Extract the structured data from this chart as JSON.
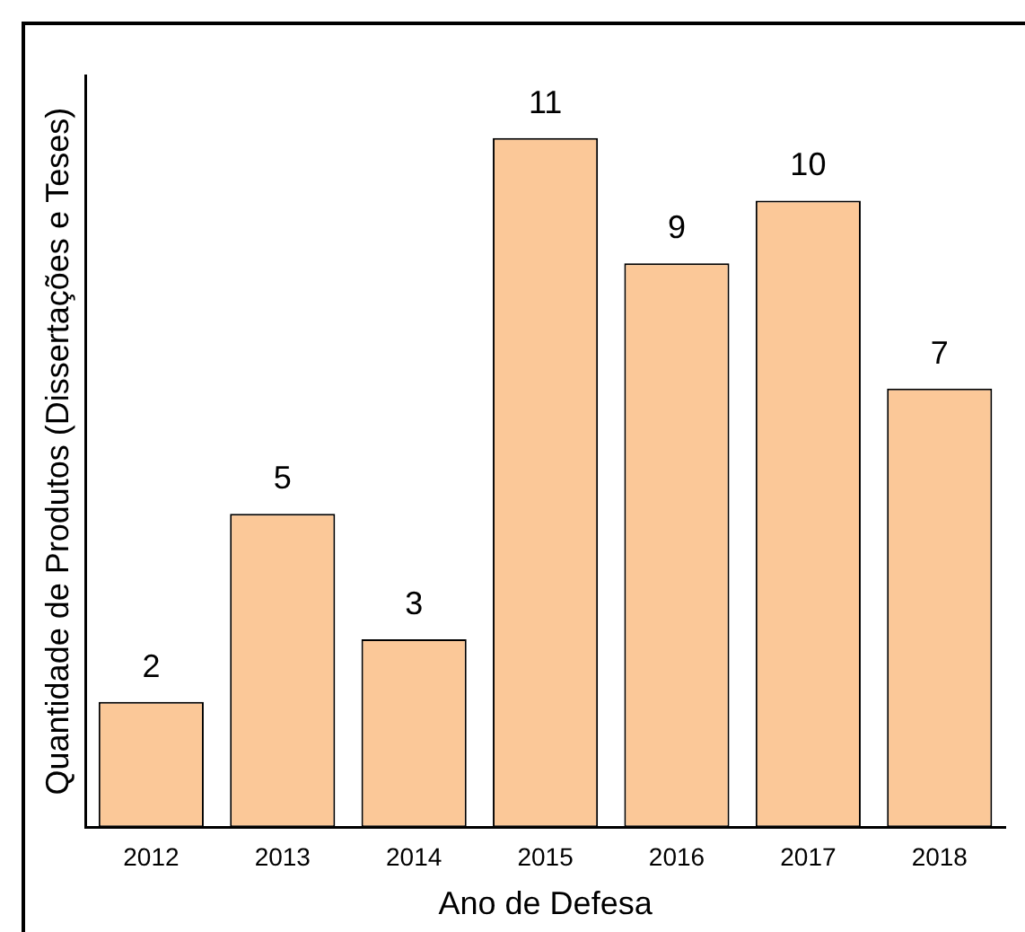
{
  "chart_data": {
    "type": "bar",
    "xlabel": "Ano de Defesa",
    "ylabel": "Quantidade de Produtos (Dissertações e Teses)",
    "categories": [
      "2012",
      "2013",
      "2014",
      "2015",
      "2016",
      "2017",
      "2018"
    ],
    "values": [
      2,
      5,
      3,
      11,
      9,
      10,
      7
    ],
    "color": "#fbc898",
    "ylim": [
      0,
      12
    ],
    "data_labels": true,
    "grid": false,
    "legend": false
  }
}
